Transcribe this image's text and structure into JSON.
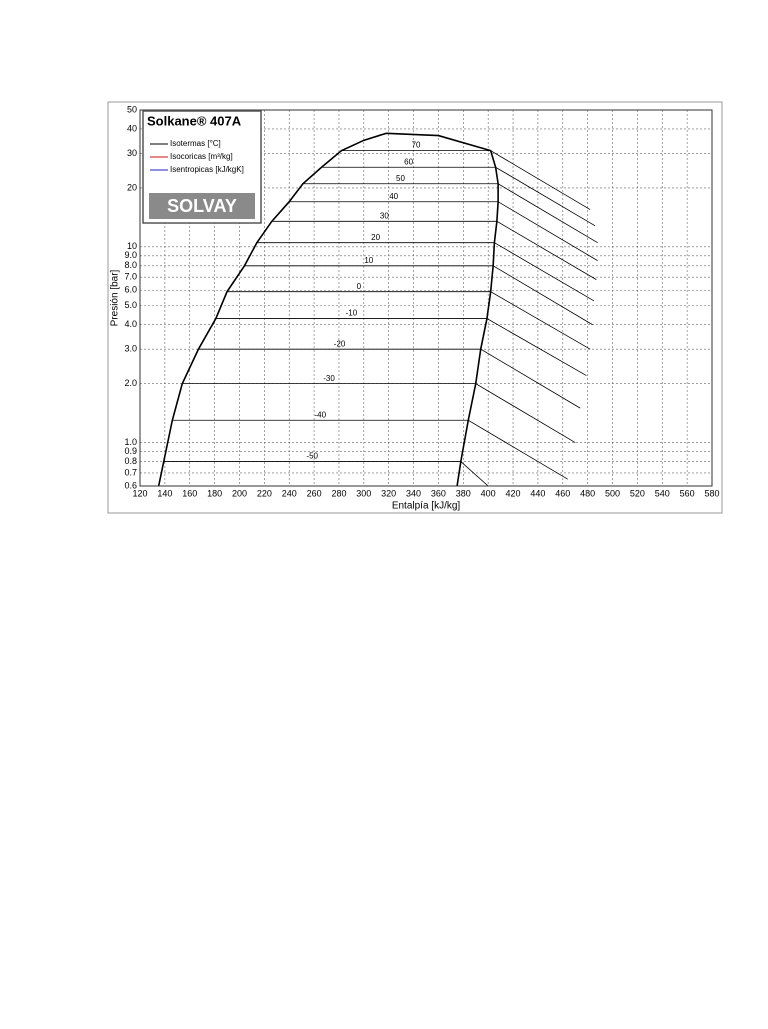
{
  "chart_data": {
    "type": "line",
    "title": "Solkane® 407A",
    "logo": "SOLVAY",
    "x_label": "Entalpía [kJ/kg]",
    "y_label": "Presión [bar]",
    "xlim": [
      120,
      580
    ],
    "xticks": [
      120,
      140,
      160,
      180,
      200,
      220,
      240,
      260,
      280,
      300,
      320,
      340,
      360,
      380,
      400,
      420,
      440,
      460,
      480,
      500,
      520,
      540,
      560,
      580
    ],
    "ylim": [
      0.6,
      50
    ],
    "yticks": [
      0.6,
      0.7,
      0.8,
      0.9,
      {
        "value": 1,
        "label": "1.0"
      },
      {
        "value": 2,
        "label": "2.0"
      },
      {
        "value": 3,
        "label": "3.0"
      },
      {
        "value": 4,
        "label": "4.0"
      },
      {
        "value": 5,
        "label": "5.0"
      },
      {
        "value": 6,
        "label": "6.0"
      },
      {
        "value": 7,
        "label": "7.0"
      },
      {
        "value": 8,
        "label": "8.0"
      },
      {
        "value": 9,
        "label": "9.0"
      },
      10,
      20,
      30,
      40,
      50
    ],
    "log_y": true,
    "grid": true,
    "legend": [
      {
        "name": "Isotermas [°C]",
        "color": "#000000"
      },
      {
        "name": "Isocoricas [m³/kg]",
        "color": "#d01010"
      },
      {
        "name": "Isentropicas [kJ/kgK]",
        "color": "#2020c0"
      }
    ],
    "saturation": {
      "color": "#000000",
      "x": [
        135,
        146,
        154,
        167,
        181,
        190,
        204,
        214,
        226,
        240,
        251,
        266,
        282,
        300,
        318,
        360,
        402,
        406,
        408,
        408,
        407,
        405,
        404,
        402,
        399,
        394,
        390,
        384,
        378,
        375
      ],
      "y": [
        0.6,
        1.3,
        2.0,
        3.0,
        4.3,
        5.9,
        8,
        10.5,
        13.5,
        17,
        21,
        25.5,
        31,
        35,
        38,
        37,
        31,
        25.5,
        21,
        17,
        13.5,
        10.5,
        8,
        5.9,
        4.3,
        3.0,
        2.0,
        1.3,
        0.8,
        0.6
      ]
    },
    "isotherms": [
      {
        "label": "70",
        "x": [
          282,
          402,
          482
        ],
        "y": [
          31,
          31,
          15.5
        ]
      },
      {
        "label": "60",
        "x": [
          266,
          406,
          486
        ],
        "y": [
          25.5,
          25.5,
          12.8
        ]
      },
      {
        "label": "50",
        "x": [
          251,
          408,
          488
        ],
        "y": [
          21,
          21,
          10.5
        ]
      },
      {
        "label": "40",
        "x": [
          240,
          408,
          488
        ],
        "y": [
          17,
          17,
          8.5
        ]
      },
      {
        "label": "30",
        "x": [
          226,
          407,
          487
        ],
        "y": [
          13.5,
          13.5,
          6.8
        ]
      },
      {
        "label": "20",
        "x": [
          214,
          405,
          485
        ],
        "y": [
          10.5,
          10.5,
          5.3
        ]
      },
      {
        "label": "10",
        "x": [
          204,
          404,
          484
        ],
        "y": [
          8,
          8,
          4
        ]
      },
      {
        "label": "0",
        "x": [
          190,
          402,
          482
        ],
        "y": [
          5.9,
          5.9,
          3
        ]
      },
      {
        "label": "-10",
        "x": [
          181,
          399,
          479
        ],
        "y": [
          4.3,
          4.3,
          2.2
        ]
      },
      {
        "label": "-20",
        "x": [
          167,
          394,
          474
        ],
        "y": [
          3.0,
          3.0,
          1.5
        ]
      },
      {
        "label": "-30",
        "x": [
          154,
          390,
          470
        ],
        "y": [
          2.0,
          2.0,
          1.0
        ]
      },
      {
        "label": "-40",
        "x": [
          146,
          384,
          464
        ],
        "y": [
          1.3,
          1.3,
          0.65
        ]
      },
      {
        "label": "-50",
        "x": [
          139,
          378,
          400
        ],
        "y": [
          0.8,
          0.8,
          0.6
        ]
      }
    ]
  }
}
